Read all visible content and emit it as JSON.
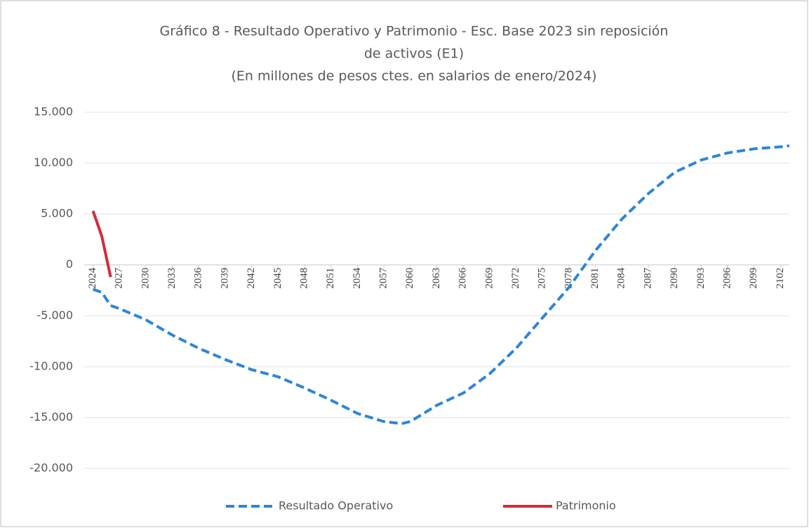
{
  "chart_data": {
    "type": "line",
    "title": [
      "Gráfico 8 - Resultado Operativo y Patrimonio - Esc. Base 2023 sin reposición",
      "de activos (E1)",
      "(En millones de pesos ctes. en salarios de enero/2024)"
    ],
    "series": [
      {
        "name": "Resultado Operativo",
        "color": "#2e86d6",
        "dashed": true,
        "x": [
          2024,
          2025,
          2026,
          2027,
          2030,
          2033,
          2036,
          2039,
          2042,
          2045,
          2048,
          2051,
          2054,
          2057,
          2059,
          2060,
          2063,
          2066,
          2069,
          2072,
          2075,
          2078,
          2081,
          2084,
          2087,
          2090,
          2093,
          2096,
          2099,
          2102,
          2103
        ],
        "values": [
          -2400,
          -2700,
          -4000,
          -4300,
          -5400,
          -6900,
          -8200,
          -9300,
          -10300,
          -11000,
          -12100,
          -13300,
          -14600,
          -15400,
          -15600,
          -15400,
          -13800,
          -12600,
          -10700,
          -8200,
          -5200,
          -2200,
          1400,
          4500,
          7000,
          9100,
          10300,
          11000,
          11400,
          11600,
          11700
        ]
      },
      {
        "name": "Patrimonio",
        "color": "#d62b3a",
        "dashed": false,
        "x": [
          2024,
          2025,
          2026
        ],
        "values": [
          5300,
          2800,
          -1200
        ]
      }
    ],
    "xlim": [
      2023,
      2103
    ],
    "xticks": [
      2024,
      2027,
      2030,
      2033,
      2036,
      2039,
      2042,
      2045,
      2048,
      2051,
      2054,
      2057,
      2060,
      2063,
      2066,
      2069,
      2072,
      2075,
      2078,
      2081,
      2084,
      2087,
      2090,
      2093,
      2096,
      2099,
      2102
    ],
    "ylim": [
      -20000,
      15000
    ],
    "yticks": [
      {
        "value": -20000,
        "label": "-20.000"
      },
      {
        "value": -15000,
        "label": "-15.000"
      },
      {
        "value": -10000,
        "label": "-10.000"
      },
      {
        "value": -5000,
        "label": "-5.000"
      },
      0,
      {
        "value": 5000,
        "label": "5.000"
      },
      {
        "value": 10000,
        "label": "10.000"
      },
      {
        "value": 15000,
        "label": "15.000"
      }
    ],
    "grid": true
  }
}
